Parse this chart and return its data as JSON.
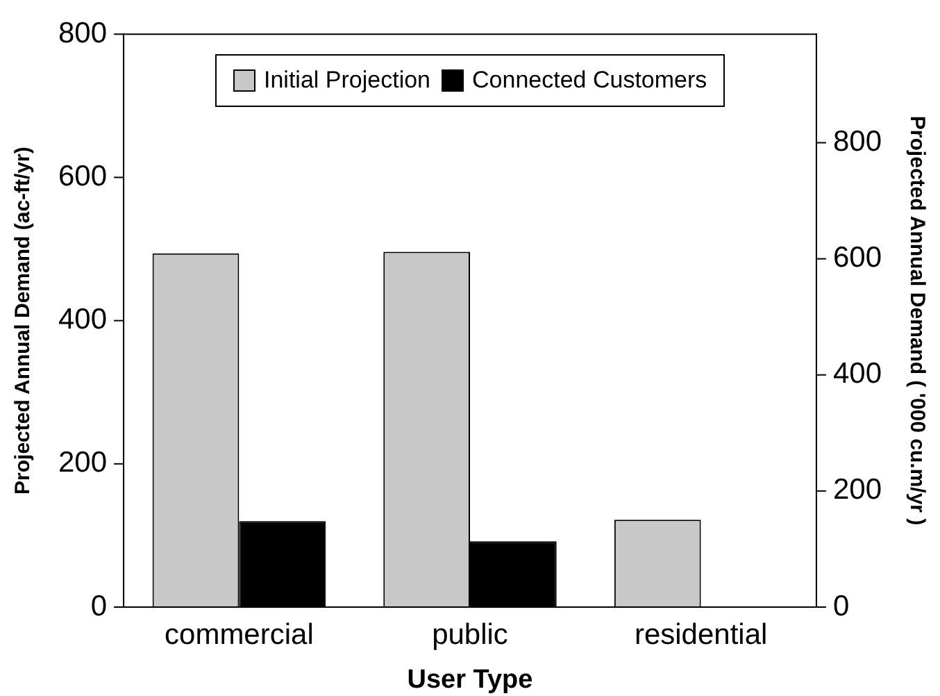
{
  "chart_data": {
    "type": "bar",
    "xlabel": "User Type",
    "ylabel": "Projected Annual Demand (ac-ft/yr)",
    "y2label": "Projected Annual Demand ( '000 cu.m/yr )",
    "categories": [
      "commercial",
      "public",
      "residential"
    ],
    "series": [
      {
        "name": "Initial Projection",
        "color": "#c8c8c8",
        "values": [
          494,
          496,
          122
        ]
      },
      {
        "name": "Connected Customers",
        "color": "#000000",
        "values": [
          120,
          92,
          null
        ]
      }
    ],
    "ylim": [
      0,
      800
    ],
    "yticks": [
      0,
      200,
      400,
      600,
      800
    ],
    "y2lim": [
      0,
      987
    ],
    "y2ticks": [
      0,
      200,
      400,
      600,
      800
    ],
    "grid": false,
    "legend": "top"
  }
}
